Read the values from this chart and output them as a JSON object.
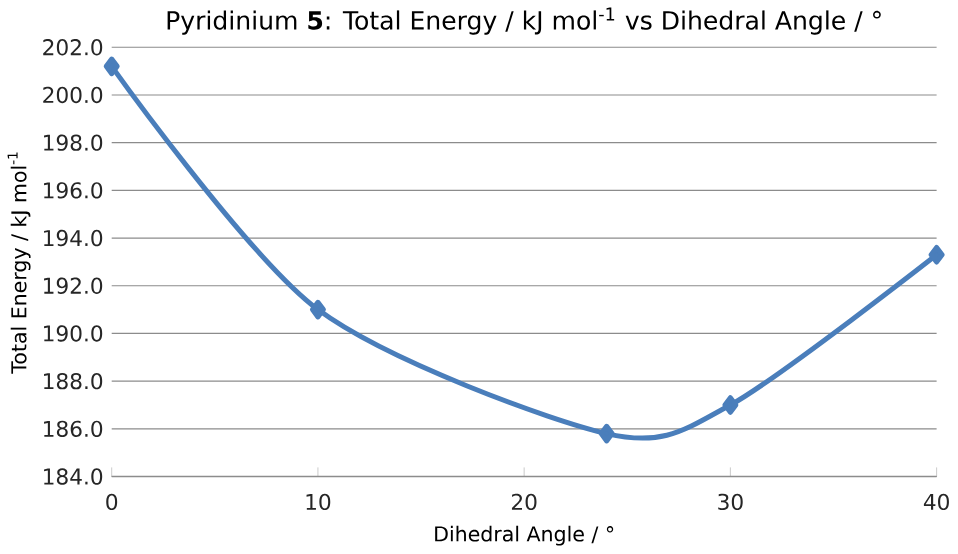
{
  "chart_data": {
    "type": "line",
    "title": "Pyridinium **5**: Total Energy / kJ mol$^{-1}$ vs Dihedral Angle / °",
    "xlabel": "Dihedral Angle / °",
    "ylabel": "Total Energy / kJ mol$^{-1}$",
    "x": [
      0,
      10,
      24,
      30,
      40
    ],
    "series": [
      {
        "color": "#4a7ebb",
        "values": [
          201.2,
          191.0,
          185.8,
          187.0,
          193.3
        ]
      }
    ],
    "xlim": [
      0,
      40
    ],
    "xticks": [
      0,
      10,
      20,
      30,
      40
    ],
    "ylim": [
      184,
      202
    ],
    "yticks": [
      {
        "value": 184,
        "label": "184.0"
      },
      {
        "value": 186,
        "label": "186.0"
      },
      {
        "value": 188,
        "label": "188.0"
      },
      {
        "value": 190,
        "label": "190.0"
      },
      {
        "value": 192,
        "label": "192.0"
      },
      {
        "value": 194,
        "label": "194.0"
      },
      {
        "value": 196,
        "label": "196.0"
      },
      {
        "value": 198,
        "label": "198.0"
      },
      {
        "value": 200,
        "label": "200.0"
      },
      {
        "value": 202,
        "label": "202.0"
      }
    ],
    "grid": "y",
    "marker": "diamond",
    "line_style": "solid"
  }
}
